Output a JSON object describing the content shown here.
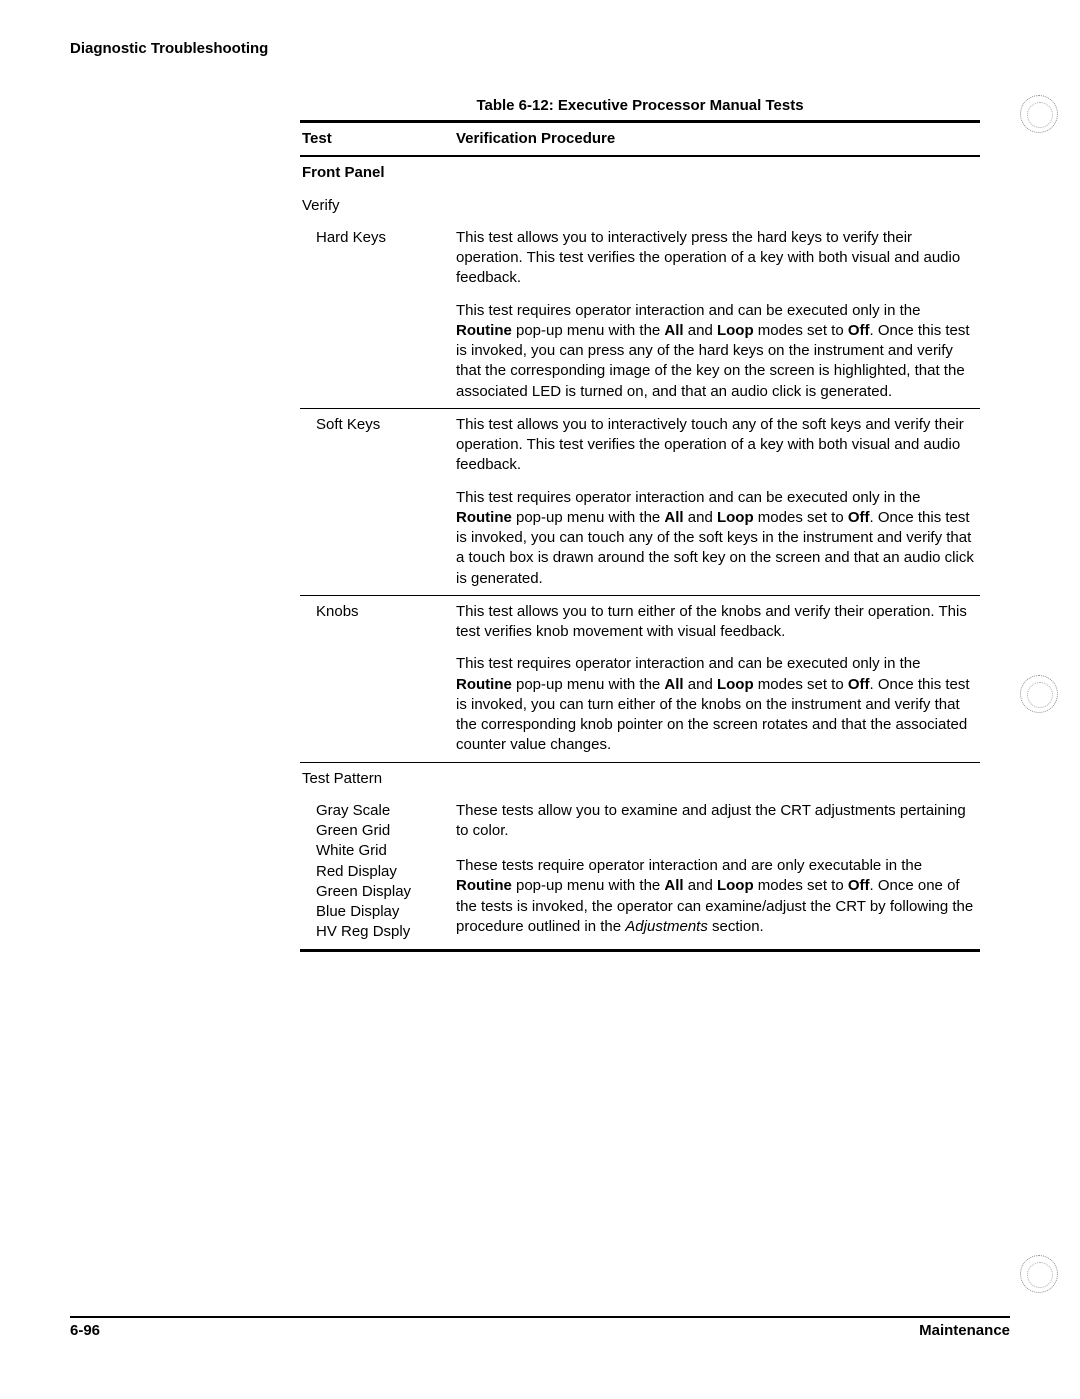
{
  "header": {
    "section": "Diagnostic Troubleshooting"
  },
  "table": {
    "caption_label": "Table 6-12:",
    "caption_title": "Executive Processor Manual Tests",
    "columns": {
      "test": "Test",
      "proc": "Verification Procedure"
    },
    "cat1": {
      "label": "Front Panel",
      "sub": "Verify"
    },
    "hardkeys": {
      "label": "Hard Keys",
      "p1": "This test allows you to interactively press the hard keys to verify their operation. This test verifies the operation of a key with both visual and audio feedback.",
      "p2a": "This test requires operator interaction and can be executed only in the ",
      "p2b": " pop-up menu with the ",
      "p2c": " and ",
      "p2d": " modes set to ",
      "p2e": ". Once this test is invoked, you can press any of the hard keys on the instrument and verify that the corresponding image of the key on the screen is highlighted, that the associated LED is turned on, and that an audio click is generated.",
      "kw_routine": "Routine",
      "kw_all": "All",
      "kw_loop": "Loop",
      "kw_off": "Off"
    },
    "softkeys": {
      "label": "Soft Keys",
      "p1": "This test allows you to interactively touch any of the soft keys and verify their operation. This test verifies the operation of a key with both visual and audio feedback.",
      "p2a": "This test requires operator interaction and can be executed only in the ",
      "p2b": " pop-up menu with the ",
      "p2c": " and ",
      "p2d": " modes set to ",
      "p2e": ". Once this test is invoked, you can touch any of the soft keys in the instrument and verify that a touch box is drawn around the soft key on the screen and that an audio click is generated.",
      "kw_routine": "Routine",
      "kw_all": "All",
      "kw_loop": "Loop",
      "kw_off": "Off"
    },
    "knobs": {
      "label": "Knobs",
      "p1": "This test allows you to turn either of the knobs and verify their operation. This test verifies knob movement with visual feedback.",
      "p2a": "This test requires operator interaction and can be executed only in the ",
      "p2b": " pop-up menu with the ",
      "p2c": " and ",
      "p2d": " modes set to ",
      "p2e": ". Once this test is invoked, you can turn either of the knobs on the instrument and verify that the corresponding knob pointer on the screen rotates and that the associated counter value changes.",
      "kw_routine": "Routine",
      "kw_all": "All",
      "kw_loop": "Loop",
      "kw_off": "Off"
    },
    "cat2": {
      "label": "Test Pattern"
    },
    "pattern": {
      "l1": "Gray Scale",
      "l2": "Green Grid",
      "l3": "White Grid",
      "l4": "Red Display",
      "l5": "Green Display",
      "l6": "Blue Display",
      "l7": "HV Reg Dsply",
      "p1": "These tests allow you to examine and adjust the CRT adjustments pertaining to color.",
      "p2a": "These tests require operator interaction and are only executable in the ",
      "p2b": " pop-up menu with the ",
      "p2c": " and ",
      "p2d": " modes set to ",
      "p2e": ". Once one of the tests is invoked, the operator can examine/adjust the CRT by following the procedure outlined in the ",
      "p2f": " section.",
      "kw_routine": "Routine",
      "kw_all": "All",
      "kw_loop": "Loop",
      "kw_off": "Off",
      "kw_adj": "Adjustments"
    }
  },
  "footer": {
    "page": "6-96",
    "section": "Maintenance"
  }
}
